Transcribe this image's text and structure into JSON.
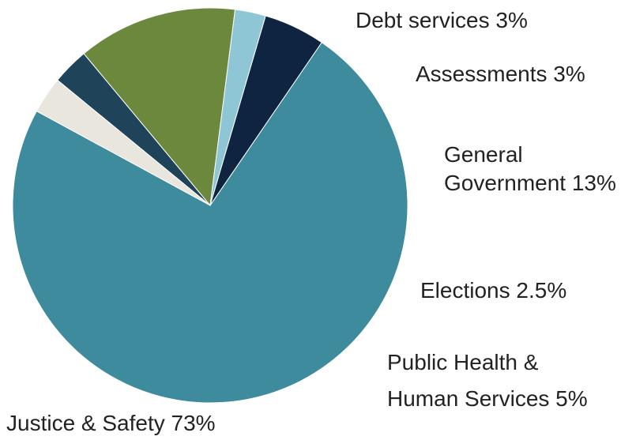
{
  "chart_data": {
    "type": "pie",
    "title": "",
    "slices": [
      {
        "label": "Justice & Safety",
        "value": 73,
        "display": "Justice & Safety 73%",
        "color": "#3d8b9c"
      },
      {
        "label": "Debt services",
        "value": 3,
        "display": "Debt services 3%",
        "color": "#e8e6dd"
      },
      {
        "label": "Assessments",
        "value": 3,
        "display": "Assessments 3%",
        "color": "#1f4459"
      },
      {
        "label": "General Government",
        "value": 13,
        "display_lines": [
          "General",
          "Government 13%"
        ],
        "color": "#6b883d"
      },
      {
        "label": "Elections",
        "value": 2.5,
        "display": "Elections 2.5%",
        "color": "#8ec6d6"
      },
      {
        "label": "Public Health & Human Services",
        "value": 5,
        "display_lines": [
          "Public Health &",
          "Human Services 5%"
        ],
        "color": "#0f2440"
      }
    ]
  }
}
